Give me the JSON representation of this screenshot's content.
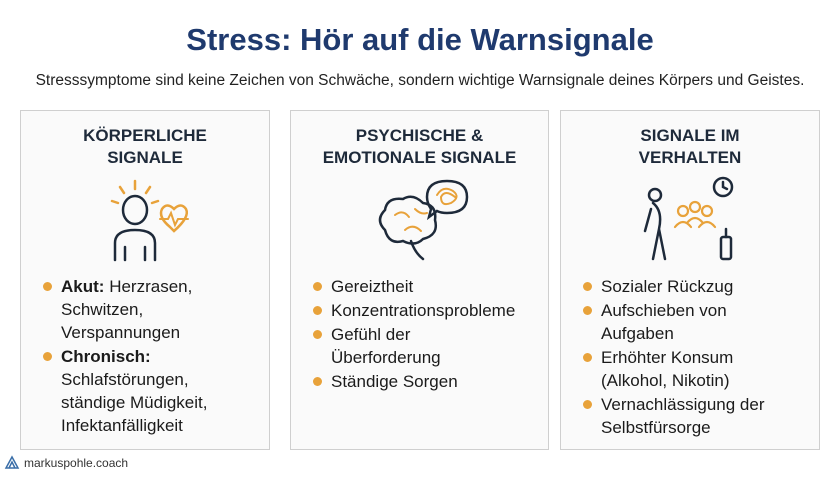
{
  "title": "Stress: Hör auf die Warnsignale",
  "subtitle": "Stresssymptome sind keine Zeichen von Schwäche, sondern wichtige Warnsignale deines Körpers und Geistes.",
  "cards": [
    {
      "heading": "KÖRPERLICHE SIGNALE",
      "items": [
        {
          "label": "Akut:",
          "text": "Herzrasen, Schwitzen, Verspannungen"
        },
        {
          "label": "Chronisch:",
          "text": "Schlafstörungen, ständige Müdigkeit, Infektanfälligkeit"
        }
      ]
    },
    {
      "heading": "PSYCHISCHE & EMOTIONALE SIGNALE",
      "items": [
        {
          "text": "Gereiztheit"
        },
        {
          "text": "Konzentrationsprobleme"
        },
        {
          "text": "Gefühl der Überforderung"
        },
        {
          "text": "Ständige Sorgen"
        }
      ]
    },
    {
      "heading": "SIGNALE IM VERHALTEN",
      "items": [
        {
          "text": "Sozialer Rückzug"
        },
        {
          "text": "Aufschieben von Aufgaben"
        },
        {
          "text": "Erhöhter Konsum (Alkohol, Nikotin)"
        },
        {
          "text": "Vernachlässigung der Selbstfürsorge"
        }
      ]
    }
  ],
  "footer": "markuspohle.coach"
}
